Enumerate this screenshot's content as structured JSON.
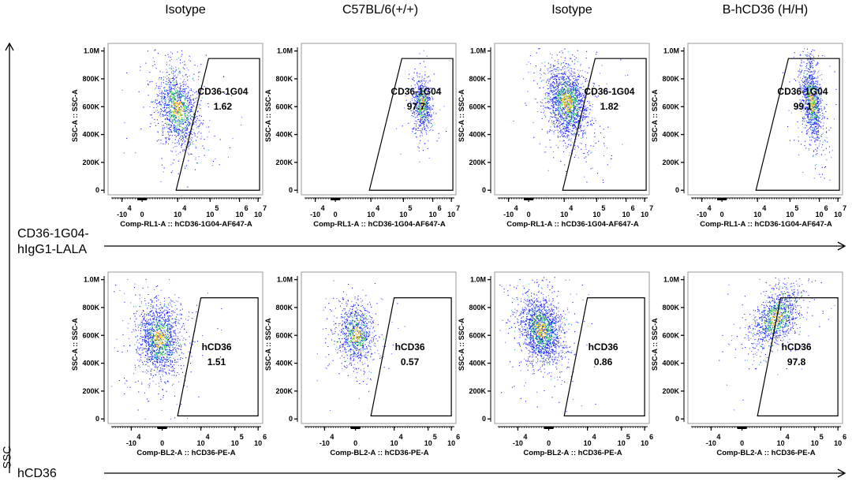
{
  "columns": [
    "Isotype",
    "C57BL/6(+/+)",
    "Isotype",
    "B-hCD36 (H/H)"
  ],
  "row_labels": {
    "top_line1": "CD36-1G04-",
    "top_line2": "hIgG1-LALA",
    "bottom": "hCD36",
    "vertical": "SSC"
  },
  "chart_data": {
    "type": "scatter",
    "title": "",
    "ylabel": "SSC-A :: SSC-A",
    "y_ticks": [
      "1.0M",
      "800K",
      "600K",
      "400K",
      "200K",
      "0"
    ],
    "y_tick_values": [
      1000000,
      800000,
      600000,
      400000,
      200000,
      0
    ],
    "ylim": [
      0,
      1050000
    ],
    "rows": [
      {
        "xlabel": "Comp-RL1-A :: hCD36-1G04-AF647-A",
        "x_ticks": [
          "-10",
          "0",
          "10",
          "10",
          "10",
          "10"
        ],
        "x_tick_exps": [
          "4",
          "",
          "4",
          "5",
          "6",
          "7"
        ],
        "panels": [
          {
            "column": "Isotype",
            "gate": "CD36-1G04",
            "percent": "1.62"
          },
          {
            "column": "C57BL/6(+/+)",
            "gate": "CD36-1G04",
            "percent": "97.7"
          },
          {
            "column": "Isotype",
            "gate": "CD36-1G04",
            "percent": "1.82"
          },
          {
            "column": "B-hCD36 (H/H)",
            "gate": "CD36-1G04",
            "percent": "99.1"
          }
        ]
      },
      {
        "xlabel": "Comp-BL2-A :: hCD36-PE-A",
        "x_ticks": [
          "-10",
          "0",
          "10",
          "10",
          "10"
        ],
        "x_tick_exps": [
          "4",
          "",
          "4",
          "5",
          "6"
        ],
        "panels": [
          {
            "column": "Isotype",
            "gate": "hCD36",
            "percent": "1.51"
          },
          {
            "column": "C57BL/6(+/+)",
            "gate": "hCD36",
            "percent": "0.57"
          },
          {
            "column": "Isotype",
            "gate": "hCD36",
            "percent": "0.86"
          },
          {
            "column": "B-hCD36 (H/H)",
            "gate": "hCD36",
            "percent": "97.8"
          }
        ]
      }
    ]
  }
}
